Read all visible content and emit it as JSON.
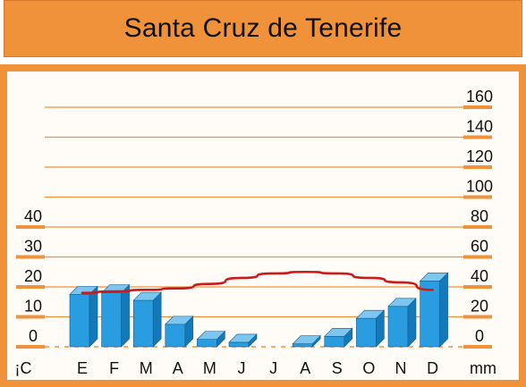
{
  "title": "Santa Cruz de Tenerife",
  "chart_data": {
    "type": "bar",
    "title": "Santa Cruz de Tenerife",
    "categories": [
      "E",
      "F",
      "M",
      "A",
      "M",
      "J",
      "J",
      "A",
      "S",
      "O",
      "N",
      "D"
    ],
    "series": [
      {
        "type": "bar",
        "axis": "right",
        "values": [
          35,
          36,
          31,
          15,
          5,
          3,
          0,
          2,
          7,
          19,
          27,
          44
        ]
      },
      {
        "type": "line",
        "axis": "left",
        "values": [
          18,
          18.5,
          19,
          19.5,
          21,
          23,
          24.5,
          25,
          24.5,
          23,
          21.5,
          19
        ]
      }
    ],
    "left_axis": {
      "label": "¡C",
      "ticks": [
        "0",
        "10",
        "20",
        "30",
        "40"
      ],
      "ylim": [
        0,
        80
      ]
    },
    "right_axis": {
      "label": "mm",
      "ticks": [
        "0",
        "20",
        "40",
        "60",
        "80",
        "100",
        "120",
        "140",
        "160"
      ],
      "ylim": [
        0,
        160
      ]
    },
    "colors": {
      "bar_front": "#2a9de0",
      "bar_side": "#1479b8",
      "bar_top": "#7cc6f0",
      "line": "#cc1a1a",
      "grid": "#f0923a",
      "frame": "#f0923a"
    },
    "grid": true
  }
}
